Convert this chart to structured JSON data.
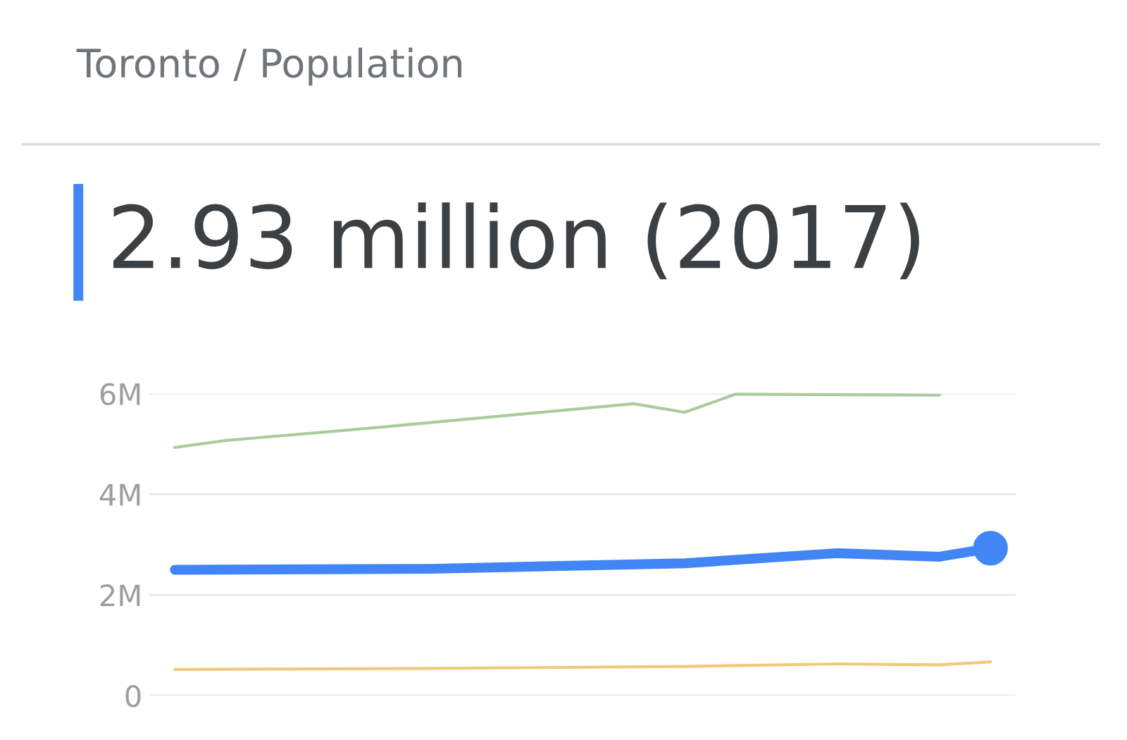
{
  "chart_data": {
    "type": "line",
    "title": "Toronto / Population",
    "subtitle": "2.93 million (2017)",
    "categories": [
      null,
      null,
      null,
      null,
      null,
      null,
      null,
      null,
      null,
      null,
      null,
      null,
      null,
      null,
      null,
      null,
      null
    ],
    "series": [
      {
        "color": "#a9cc9c",
        "values": [
          4.93,
          5.07,
          null,
          null,
          5.33,
          null,
          null,
          null,
          null,
          5.8,
          5.63,
          5.99,
          null,
          null,
          null,
          5.97,
          null
        ]
      },
      {
        "color": "#4285f4",
        "values": [
          2.5,
          null,
          null,
          null,
          null,
          2.52,
          null,
          null,
          null,
          null,
          2.63,
          null,
          null,
          2.83,
          null,
          2.76,
          2.93
        ]
      },
      {
        "type": "scatter",
        "color": "#4285f4",
        "marker": "circle",
        "values": [
          null,
          null,
          null,
          null,
          null,
          null,
          null,
          null,
          null,
          null,
          null,
          null,
          null,
          null,
          null,
          null,
          2.93
        ]
      },
      {
        "color": "#f0c97c",
        "values": [
          0.52,
          null,
          null,
          null,
          null,
          0.54,
          null,
          null,
          null,
          null,
          0.58,
          null,
          null,
          0.63,
          null,
          0.61,
          0.67
        ]
      }
    ],
    "ylim": [
      0,
      6
    ],
    "yticks": [
      0,
      {
        "value": 2,
        "label": "2M"
      },
      {
        "value": 4,
        "label": "4M"
      },
      {
        "value": 6,
        "label": "6M"
      }
    ],
    "grid": "y",
    "tick_labels": "y",
    "marker": "none"
  }
}
